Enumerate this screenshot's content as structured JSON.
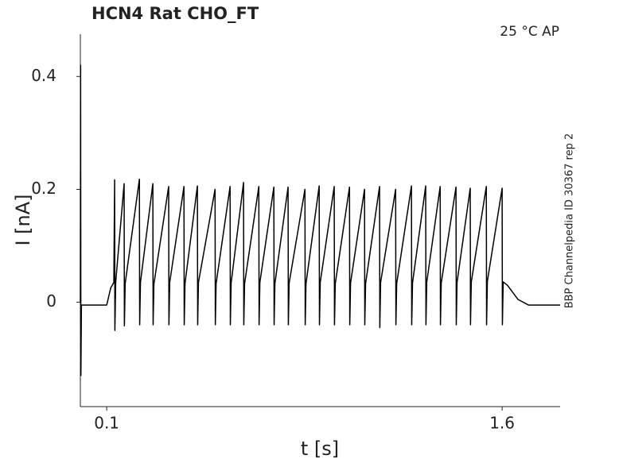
{
  "chart_data": {
    "type": "line",
    "title": "HCN4  Rat  CHO_FT",
    "annotation": "25 °C  AP",
    "side_note": "BBP Channelpedia ID 30367 rep 2",
    "x_label": "t [s]",
    "y_label": "I [nA]",
    "xlim": [
      0,
      1.82
    ],
    "ylim": [
      -0.185,
      0.475
    ],
    "xticks": [
      0.1,
      1.6
    ],
    "yticks": [
      0,
      0.2,
      0.4
    ],
    "grid": false,
    "x": [
      0,
      0.001,
      0.002,
      0.004,
      0.1,
      0.115,
      0.127,
      0.13,
      0.131,
      0.134,
      0.166,
      0.167,
      0.17,
      0.224,
      0.225,
      0.228,
      0.275,
      0.276,
      0.279,
      0.335,
      0.336,
      0.339,
      0.393,
      0.394,
      0.397,
      0.444,
      0.445,
      0.448,
      0.511,
      0.512,
      0.515,
      0.568,
      0.569,
      0.572,
      0.619,
      0.62,
      0.623,
      0.677,
      0.678,
      0.681,
      0.734,
      0.735,
      0.738,
      0.788,
      0.789,
      0.792,
      0.852,
      0.853,
      0.856,
      0.906,
      0.907,
      0.91,
      0.963,
      0.964,
      0.967,
      1.021,
      1.022,
      1.025,
      1.078,
      1.079,
      1.082,
      1.135,
      1.136,
      1.139,
      1.196,
      1.197,
      1.2,
      1.256,
      1.257,
      1.26,
      1.31,
      1.311,
      1.314,
      1.365,
      1.366,
      1.369,
      1.425,
      1.426,
      1.429,
      1.479,
      1.48,
      1.483,
      1.54,
      1.541,
      1.544,
      1.6,
      1.601,
      1.604,
      1.62,
      1.66,
      1.7,
      1.82
    ],
    "series": [
      {
        "color": "#000000",
        "values": [
          0,
          0.42,
          -0.13,
          -0.005,
          -0.005,
          0.025,
          0.035,
          0.217,
          -0.05,
          0.035,
          0.21,
          -0.042,
          0.033,
          0.218,
          -0.04,
          0.035,
          0.21,
          -0.04,
          0.032,
          0.205,
          -0.04,
          0.035,
          0.205,
          -0.04,
          0.033,
          0.206,
          -0.04,
          0.035,
          0.2,
          -0.04,
          0.033,
          0.205,
          -0.04,
          0.034,
          0.212,
          -0.04,
          0.033,
          0.205,
          -0.04,
          0.035,
          0.204,
          -0.04,
          0.033,
          0.204,
          -0.04,
          0.034,
          0.2,
          -0.04,
          0.033,
          0.206,
          -0.04,
          0.035,
          0.205,
          -0.04,
          0.033,
          0.204,
          -0.04,
          0.034,
          0.2,
          -0.04,
          0.033,
          0.205,
          -0.045,
          0.035,
          0.2,
          -0.04,
          0.033,
          0.206,
          -0.04,
          0.034,
          0.206,
          -0.04,
          0.035,
          0.205,
          -0.04,
          0.034,
          0.204,
          -0.04,
          0.035,
          0.202,
          -0.04,
          0.036,
          0.205,
          -0.04,
          0.037,
          0.202,
          -0.04,
          0.036,
          0.03,
          0.005,
          -0.005,
          -0.005
        ]
      }
    ]
  }
}
